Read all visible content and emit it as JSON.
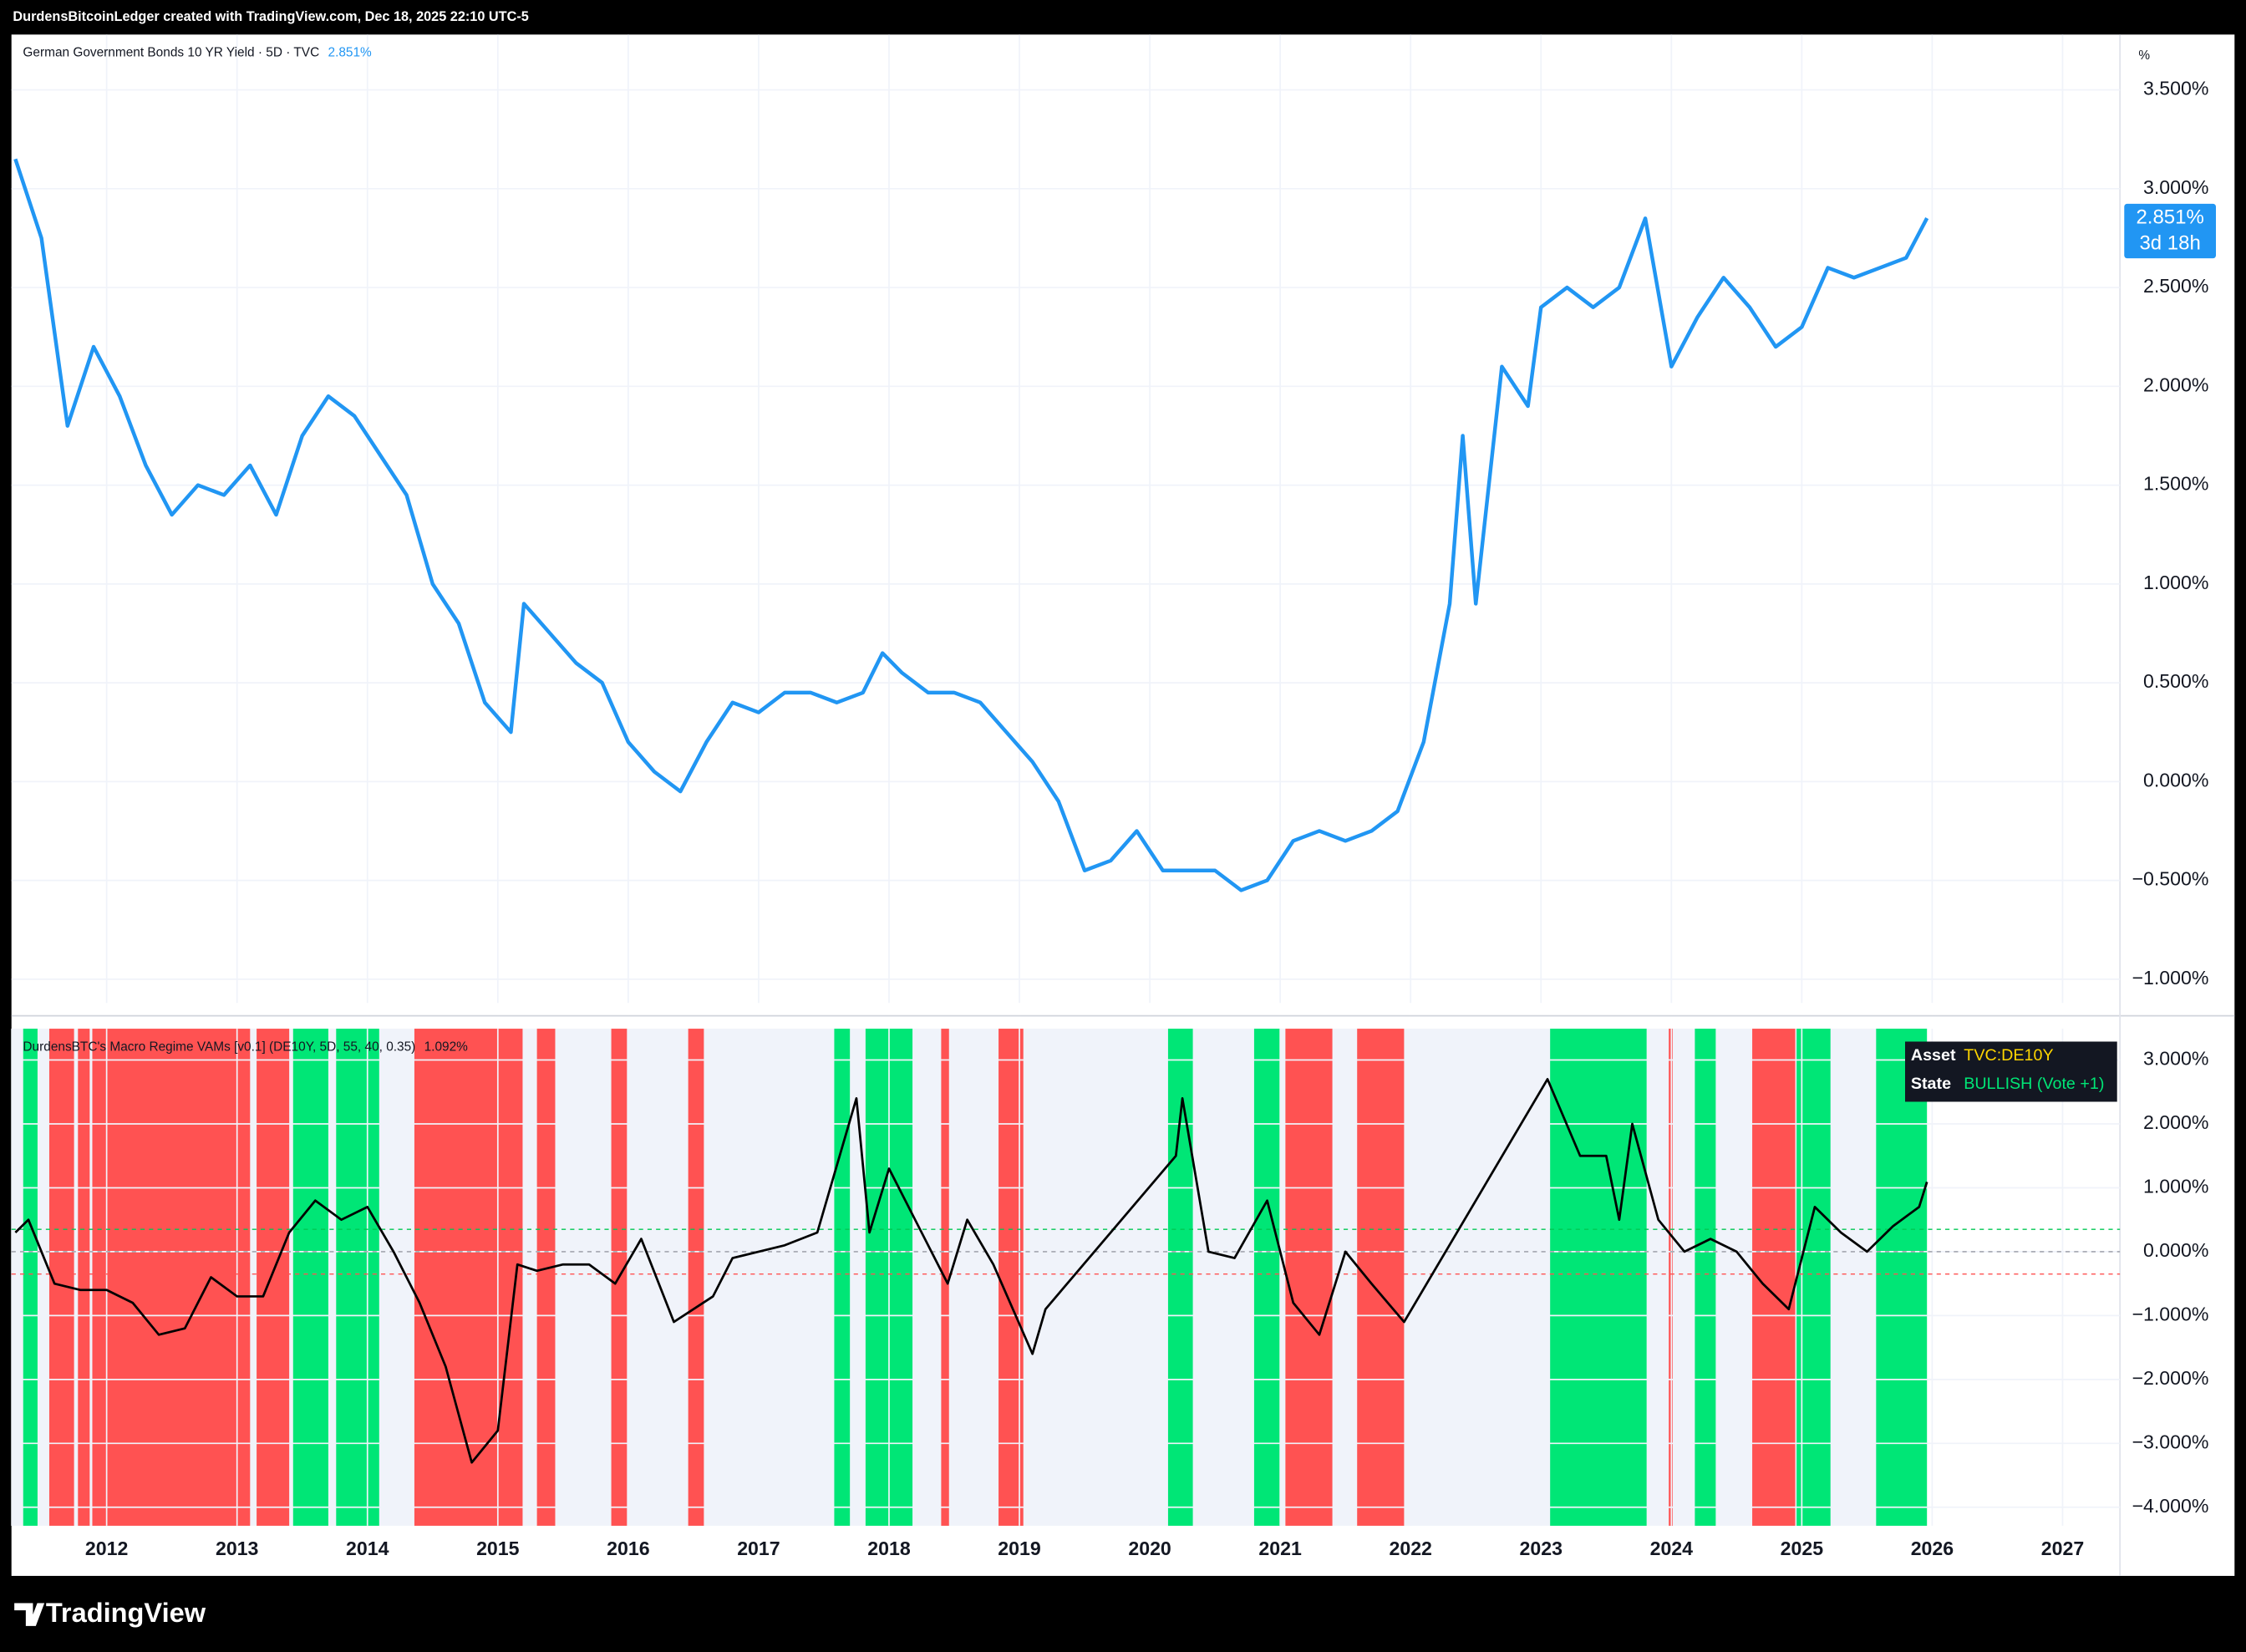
{
  "header": {
    "attribution": "DurdensBitcoinLedger created with TradingView.com, Dec 18, 2025 22:10 UTC-5",
    "logo": "TradingView"
  },
  "chart_data": [
    {
      "type": "line",
      "title": "German Government Bonds 10 YR Yield · 5D · TVC",
      "title_value": "2.851%",
      "unit": "%",
      "last_label": "2.851%",
      "countdown": "3d 18h",
      "color": "#2196f3",
      "grid": true,
      "x": [
        2011.3,
        2011.5,
        2011.7,
        2011.9,
        2012.1,
        2012.3,
        2012.5,
        2012.7,
        2012.9,
        2013.1,
        2013.3,
        2013.5,
        2013.7,
        2013.9,
        2014.1,
        2014.3,
        2014.5,
        2014.7,
        2014.9,
        2015.1,
        2015.2,
        2015.4,
        2015.6,
        2015.8,
        2016.0,
        2016.2,
        2016.4,
        2016.6,
        2016.8,
        2017.0,
        2017.2,
        2017.4,
        2017.6,
        2017.8,
        2017.95,
        2018.1,
        2018.3,
        2018.5,
        2018.7,
        2018.9,
        2019.1,
        2019.3,
        2019.5,
        2019.7,
        2019.9,
        2020.1,
        2020.3,
        2020.5,
        2020.7,
        2020.9,
        2021.1,
        2021.3,
        2021.5,
        2021.7,
        2021.9,
        2022.1,
        2022.3,
        2022.4,
        2022.5,
        2022.7,
        2022.9,
        2023.0,
        2023.2,
        2023.4,
        2023.6,
        2023.8,
        2024.0,
        2024.2,
        2024.4,
        2024.6,
        2024.8,
        2025.0,
        2025.2,
        2025.4,
        2025.6,
        2025.8,
        2025.96
      ],
      "values": [
        3.15,
        2.75,
        1.8,
        2.2,
        1.95,
        1.6,
        1.35,
        1.5,
        1.45,
        1.6,
        1.35,
        1.75,
        1.95,
        1.85,
        1.65,
        1.45,
        1.0,
        0.8,
        0.4,
        0.25,
        0.9,
        0.75,
        0.6,
        0.5,
        0.2,
        0.05,
        -0.05,
        0.2,
        0.4,
        0.35,
        0.45,
        0.45,
        0.4,
        0.45,
        0.65,
        0.55,
        0.45,
        0.45,
        0.4,
        0.25,
        0.1,
        -0.1,
        -0.45,
        -0.4,
        -0.25,
        -0.45,
        -0.45,
        -0.45,
        -0.55,
        -0.5,
        -0.3,
        -0.25,
        -0.3,
        -0.25,
        -0.15,
        0.2,
        0.9,
        1.75,
        0.9,
        2.1,
        1.9,
        2.4,
        2.5,
        2.4,
        2.5,
        2.85,
        2.1,
        2.35,
        2.55,
        2.4,
        2.2,
        2.3,
        2.6,
        2.55,
        2.6,
        2.65,
        2.851
      ],
      "xlim": [
        2011.27,
        2027.44
      ],
      "ylim": [
        -1.12,
        3.78
      ],
      "yticks": [
        {
          "value": -1,
          "label": "−1.000%"
        },
        {
          "value": -0.5,
          "label": "−0.500%"
        },
        {
          "value": 0,
          "label": "0.000%"
        },
        {
          "value": 0.5,
          "label": "0.500%"
        },
        {
          "value": 1,
          "label": "1.000%"
        },
        {
          "value": 1.5,
          "label": "1.500%"
        },
        {
          "value": 2,
          "label": "2.000%"
        },
        {
          "value": 2.5,
          "label": "2.500%"
        },
        {
          "value": 3,
          "label": "3.000%"
        },
        {
          "value": 3.5,
          "label": "3.500%"
        }
      ]
    },
    {
      "type": "regime",
      "title": "DurdensBTC's Macro Regime VAMs [v0.1] (DE10Y, 5D, 55, 40, 0.35)",
      "title_value": "1.092%",
      "color": "#000000",
      "background": "#f0f3fa",
      "grid": true,
      "x": [
        2011.3,
        2011.4,
        2011.6,
        2011.8,
        2012.0,
        2012.2,
        2012.4,
        2012.6,
        2012.8,
        2013.0,
        2013.2,
        2013.4,
        2013.6,
        2013.8,
        2014.0,
        2014.2,
        2014.4,
        2014.6,
        2014.8,
        2015.0,
        2015.15,
        2015.3,
        2015.5,
        2015.7,
        2015.9,
        2016.1,
        2016.35,
        2016.65,
        2016.8,
        2017.0,
        2017.2,
        2017.45,
        2017.75,
        2017.85,
        2018.0,
        2018.2,
        2018.45,
        2018.6,
        2018.8,
        2019.1,
        2019.2,
        2020.2,
        2020.25,
        2020.45,
        2020.65,
        2020.9,
        2021.1,
        2021.3,
        2021.5,
        2021.7,
        2021.95,
        2023.05,
        2023.3,
        2023.5,
        2023.6,
        2023.7,
        2023.9,
        2024.1,
        2024.3,
        2024.5,
        2024.7,
        2024.9,
        2025.1,
        2025.3,
        2025.5,
        2025.7,
        2025.9,
        2025.96
      ],
      "values": [
        0.3,
        0.5,
        -0.5,
        -0.6,
        -0.6,
        -0.8,
        -1.3,
        -1.2,
        -0.4,
        -0.7,
        -0.7,
        0.3,
        0.8,
        0.5,
        0.7,
        0.0,
        -0.8,
        -1.8,
        -3.3,
        -2.8,
        -0.2,
        -0.3,
        -0.2,
        -0.2,
        -0.5,
        0.2,
        -1.1,
        -0.7,
        -0.1,
        0.0,
        0.1,
        0.3,
        2.4,
        0.3,
        1.3,
        0.5,
        -0.5,
        0.5,
        -0.2,
        -1.6,
        -0.9,
        1.5,
        2.4,
        0.0,
        -0.1,
        0.8,
        -0.8,
        -1.3,
        0.0,
        -0.5,
        -1.1,
        2.7,
        1.5,
        1.5,
        0.5,
        2.0,
        0.5,
        0.0,
        0.2,
        0.0,
        -0.5,
        -0.9,
        0.7,
        0.3,
        0.0,
        0.4,
        0.7,
        1.092
      ],
      "thresholds": [
        {
          "value": 0.35,
          "color": "#00c853"
        },
        {
          "value": 0,
          "color": "#9598a1"
        },
        {
          "value": -0.35,
          "color": "#ff5252"
        }
      ],
      "regimes": [
        {
          "start": 2011.36,
          "end": 2011.47,
          "color": "#00e676"
        },
        {
          "start": 2011.56,
          "end": 2011.75,
          "color": "#ff5252"
        },
        {
          "start": 2011.78,
          "end": 2011.87,
          "color": "#ff5252"
        },
        {
          "start": 2011.89,
          "end": 2013.1,
          "color": "#ff5252"
        },
        {
          "start": 2013.15,
          "end": 2013.4,
          "color": "#ff5252"
        },
        {
          "start": 2013.43,
          "end": 2013.7,
          "color": "#00e676"
        },
        {
          "start": 2013.76,
          "end": 2014.09,
          "color": "#00e676"
        },
        {
          "start": 2014.36,
          "end": 2015.19,
          "color": "#ff5252"
        },
        {
          "start": 2015.3,
          "end": 2015.44,
          "color": "#ff5252"
        },
        {
          "start": 2015.87,
          "end": 2015.99,
          "color": "#ff5252"
        },
        {
          "start": 2016.46,
          "end": 2016.58,
          "color": "#ff5252"
        },
        {
          "start": 2017.58,
          "end": 2017.7,
          "color": "#00e676"
        },
        {
          "start": 2017.82,
          "end": 2018.18,
          "color": "#00e676"
        },
        {
          "start": 2018.4,
          "end": 2018.46,
          "color": "#ff5252"
        },
        {
          "start": 2018.84,
          "end": 2019.03,
          "color": "#ff5252"
        },
        {
          "start": 2020.14,
          "end": 2020.33,
          "color": "#00e676"
        },
        {
          "start": 2020.8,
          "end": 2021.0,
          "color": "#00e676"
        },
        {
          "start": 2021.04,
          "end": 2021.4,
          "color": "#ff5252"
        },
        {
          "start": 2021.59,
          "end": 2021.95,
          "color": "#ff5252"
        },
        {
          "start": 2023.07,
          "end": 2023.81,
          "color": "#00e676"
        },
        {
          "start": 2023.98,
          "end": 2024.01,
          "color": "#ff5252"
        },
        {
          "start": 2024.18,
          "end": 2024.34,
          "color": "#00e676"
        },
        {
          "start": 2024.62,
          "end": 2024.95,
          "color": "#ff5252"
        },
        {
          "start": 2024.96,
          "end": 2025.22,
          "color": "#00e676"
        },
        {
          "start": 2025.57,
          "end": 2025.96,
          "color": "#00e676"
        }
      ],
      "table": {
        "rows": [
          [
            "Asset",
            "TVC:DE10Y"
          ],
          [
            "State",
            "BULLISH (Vote +1)"
          ]
        ]
      },
      "xlim": [
        2011.27,
        2027.44
      ],
      "ylim": [
        -4.29,
        3.49
      ],
      "xticks": [
        2012,
        2013,
        2014,
        2015,
        2016,
        2017,
        2018,
        2019,
        2020,
        2021,
        2022,
        2023,
        2024,
        2025,
        2026,
        2027
      ],
      "yticks": [
        {
          "value": -4,
          "label": "−4.000%"
        },
        {
          "value": -3,
          "label": "−3.000%"
        },
        {
          "value": -2,
          "label": "−2.000%"
        },
        {
          "value": -1,
          "label": "−1.000%"
        },
        {
          "value": 0,
          "label": "0.000%"
        },
        {
          "value": 1,
          "label": "1.000%"
        },
        {
          "value": 2,
          "label": "2.000%"
        },
        {
          "value": 3,
          "label": "3.000%"
        }
      ]
    }
  ]
}
